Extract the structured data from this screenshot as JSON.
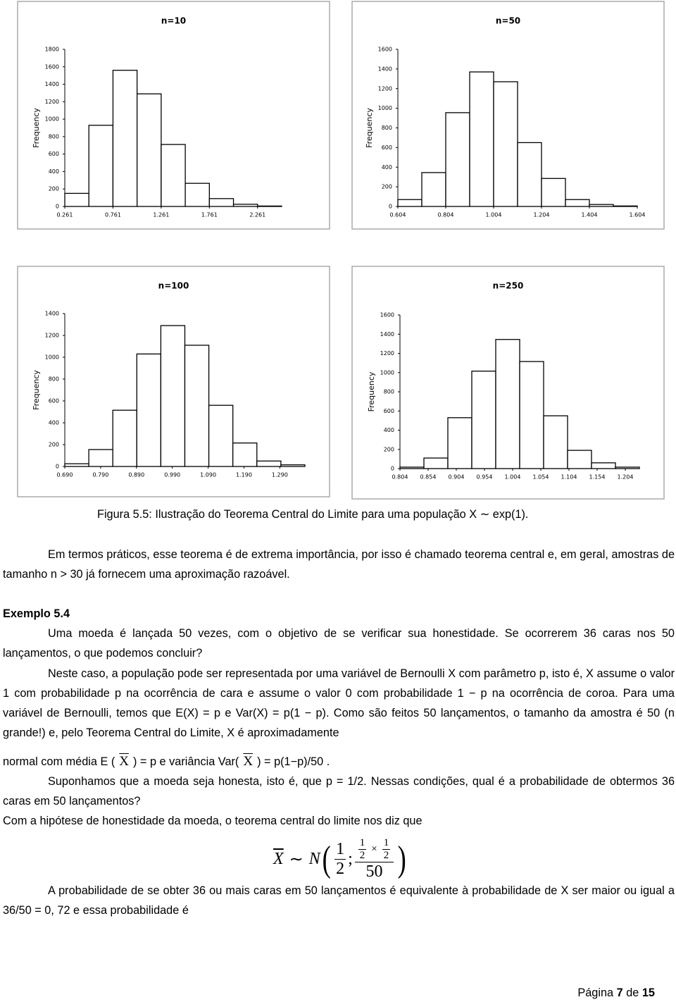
{
  "chart_data": [
    {
      "type": "histogram",
      "title": "n=10",
      "ylabel": "Frequency",
      "color": "#ffffff",
      "bins": [
        0.261,
        0.511,
        0.761,
        1.011,
        1.261,
        1.511,
        1.761,
        2.011,
        2.261,
        2.511
      ],
      "values": [
        150,
        930,
        1560,
        1290,
        710,
        265,
        90,
        25,
        5
      ],
      "xlim": [
        0.261,
        2.511
      ],
      "xticks": [
        0.261,
        0.761,
        1.261,
        1.761,
        2.261
      ],
      "ylim": [
        0,
        1800
      ],
      "yticks": [
        0,
        200,
        400,
        600,
        800,
        1000,
        1200,
        1400,
        1600,
        1800
      ]
    },
    {
      "type": "histogram",
      "title": "n=50",
      "ylabel": "Frequency",
      "color": "#ffffff",
      "bins": [
        0.604,
        0.704,
        0.804,
        0.904,
        1.004,
        1.104,
        1.204,
        1.304,
        1.404,
        1.504,
        1.604
      ],
      "values": [
        70,
        345,
        955,
        1370,
        1270,
        650,
        285,
        70,
        20,
        5
      ],
      "xlim": [
        0.604,
        1.604
      ],
      "xticks": [
        0.604,
        0.804,
        1.004,
        1.204,
        1.404,
        1.604
      ],
      "ylim": [
        0,
        1600
      ],
      "yticks": [
        0,
        200,
        400,
        600,
        800,
        1000,
        1200,
        1400,
        1600
      ]
    },
    {
      "type": "histogram",
      "title": "n=100",
      "ylabel": "Frequency",
      "color": "#ffffff",
      "bins": [
        0.69,
        0.757,
        0.824,
        0.891,
        0.958,
        1.025,
        1.092,
        1.159,
        1.226,
        1.293,
        1.36
      ],
      "values": [
        25,
        155,
        515,
        1030,
        1290,
        1110,
        560,
        215,
        50,
        15
      ],
      "xlim": [
        0.69,
        1.36
      ],
      "xticks": [
        {
          "value": 0.69,
          "label": "0.690"
        },
        {
          "value": 0.79,
          "label": "0.790"
        },
        {
          "value": 0.89,
          "label": "0.890"
        },
        {
          "value": 0.99,
          "label": "0.990"
        },
        {
          "value": 1.09,
          "label": "1.090"
        },
        {
          "value": 1.19,
          "label": "1.190"
        },
        {
          "value": 1.29,
          "label": "1.290"
        }
      ],
      "ylim": [
        0,
        1400
      ],
      "yticks": [
        0,
        200,
        400,
        600,
        800,
        1000,
        1200,
        1400
      ]
    },
    {
      "type": "histogram",
      "title": "n=250",
      "ylabel": "Frequency",
      "color": "#ffffff",
      "bins": [
        0.804,
        0.8465,
        0.889,
        0.9315,
        0.974,
        1.0165,
        1.059,
        1.1015,
        1.144,
        1.1865,
        1.229
      ],
      "values": [
        15,
        110,
        530,
        1015,
        1345,
        1115,
        550,
        190,
        60,
        15
      ],
      "xlim": [
        0.804,
        1.229
      ],
      "xticks": [
        0.804,
        0.854,
        0.904,
        0.954,
        1.004,
        1.054,
        1.104,
        1.154,
        1.204
      ],
      "ylim": [
        0,
        1600
      ],
      "yticks": [
        0,
        200,
        400,
        600,
        800,
        1000,
        1200,
        1400,
        1600
      ]
    }
  ],
  "caption": "Figura 5.5: Ilustração do Teorema Central do Limite para uma população X ∼ exp(1).",
  "paragraph_1": "Em termos práticos, esse teorema é de extrema importância, por isso é chamado teorema central e, em geral, amostras de tamanho n > 30 já fornecem uma aproximação razoável.",
  "example": {
    "title": "Exemplo 5.4",
    "question": "Uma moeda é lançada 50 vezes, com o objetivo de se verificar sua honestidade. Se ocorrerem 36 caras nos 50 lançamentos, o que podemos concluir?"
  },
  "paragraph_2": "Neste caso, a população pode ser representada por uma variável de Bernoulli X com parâmetro p, isto é, X assume o valor 1 com probabilidade p na ocorrência de cara e assume o valor 0 com probabilidade 1 − p na ocorrência de coroa. Para uma variável de Bernoulli, temos que E(X) = p e Var(X) = p(1 − p). Como são feitos 50 lançamentos, o tamanho da amostra é 50 (n grande!) e, pelo Teorema Central do Limite, X é aproximadamente",
  "normal_line": [
    "normal com média E (",
    "X",
    ") = p e variância Var(",
    "X",
    ") = p(1−p)/50 ."
  ],
  "paragraph_3": "Suponhamos que a moeda seja honesta, isto é, que p = 1/2. Nessas condições, qual é a probabilidade de obtermos 36 caras em 50 lançamentos?",
  "paragraph_4": "Com a hipótese de honestidade da moeda, o teorema central do limite nos diz que",
  "formula": {
    "lhs": "X",
    "sim": "∼",
    "dist": "N",
    "open": "(",
    "mean": {
      "num": "1",
      "den": "2"
    },
    "sep": ";",
    "var": {
      "num_a": {
        "num": "1",
        "den": "2"
      },
      "times": "×",
      "num_b": {
        "num": "1",
        "den": "2"
      },
      "den": "50"
    },
    "close": ")"
  },
  "paragraph_5": "A probabilidade de se obter 36 ou mais caras em 50 lançamentos é equivalente à probabilidade de X ser maior ou igual a 36/50 = 0, 72 e essa probabilidade é",
  "footer": {
    "prefix": "Página",
    "page": "7",
    "middle": "de",
    "total": "15"
  }
}
